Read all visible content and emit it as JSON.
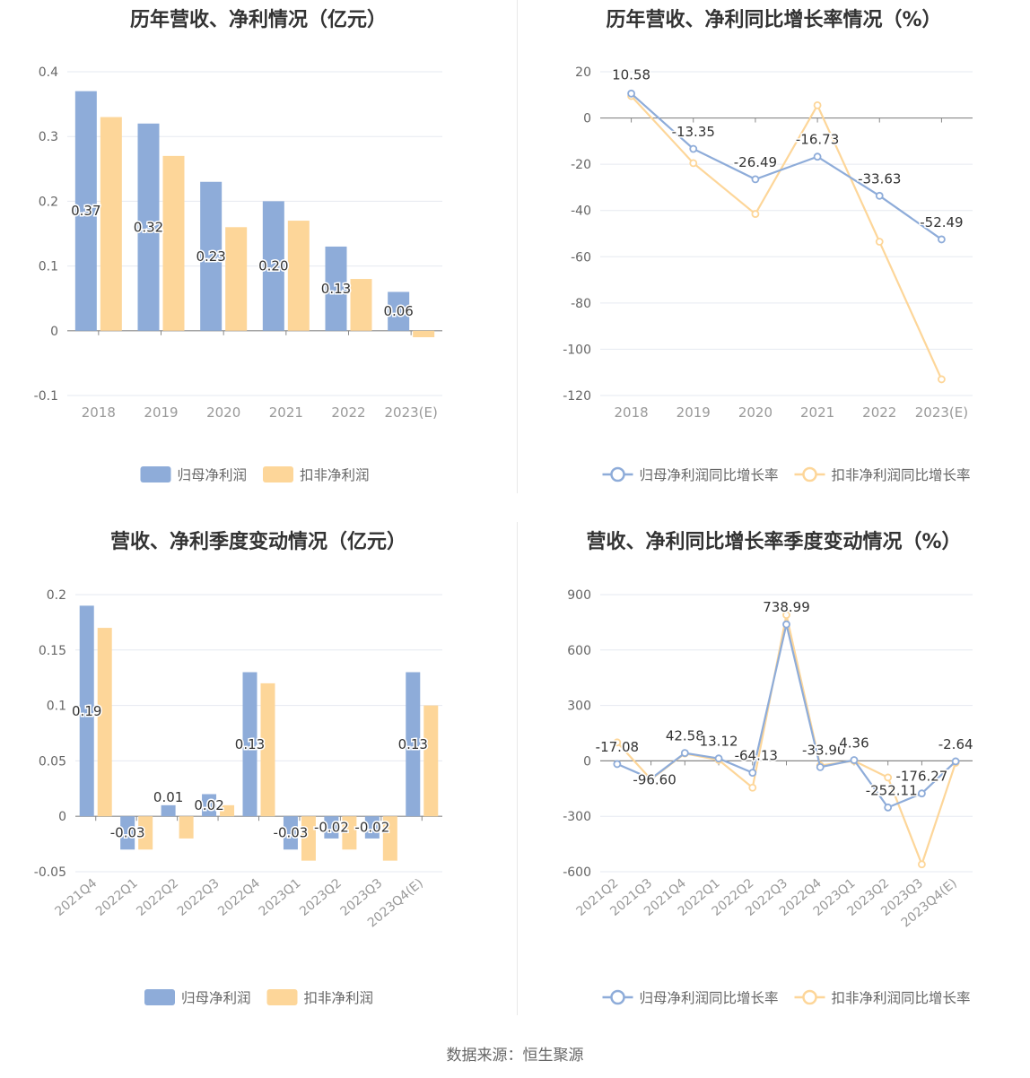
{
  "source": "数据来源：恒生聚源",
  "chart_data": [
    {
      "id": "annual_profit",
      "type": "bar",
      "title": "历年营收、净利情况（亿元）",
      "categories": [
        "2018",
        "2019",
        "2020",
        "2021",
        "2022",
        "2023(E)"
      ],
      "series": [
        {
          "name": "归母净利润",
          "values": [
            0.37,
            0.32,
            0.23,
            0.2,
            0.13,
            0.06
          ],
          "labels": [
            "0.37",
            "0.32",
            "0.23",
            "0.20",
            "0.13",
            "0.06"
          ],
          "color": "#8eacd9"
        },
        {
          "name": "扣非净利润",
          "values": [
            0.33,
            0.27,
            0.16,
            0.17,
            0.08,
            -0.01
          ],
          "color": "#fdd699"
        }
      ],
      "yticks": [
        "0.4",
        "0.3",
        "0.2",
        "0.1",
        "0",
        "-0.1"
      ],
      "ylim": [
        -0.1,
        0.4
      ],
      "legend": "bottom-center",
      "grid": true
    },
    {
      "id": "annual_growth",
      "type": "line",
      "title": "历年营收、净利同比增长率情况（%）",
      "categories": [
        "2018",
        "2019",
        "2020",
        "2021",
        "2022",
        "2023(E)"
      ],
      "series": [
        {
          "name": "归母净利润同比增长率",
          "values": [
            10.58,
            -13.35,
            -26.49,
            -16.73,
            -33.63,
            -52.49
          ],
          "labels": [
            "10.58",
            "-13.35",
            "-26.49",
            "-16.73",
            "-33.63",
            "-52.49"
          ],
          "color": "#8eacd9"
        },
        {
          "name": "扣非净利润同比增长率",
          "values": [
            9.5,
            -19.5,
            -41.5,
            5.5,
            -53.5,
            -113
          ],
          "color": "#fdd699"
        }
      ],
      "yticks": [
        "20",
        "0",
        "-20",
        "-40",
        "-60",
        "-80",
        "-100",
        "-120"
      ],
      "ylim": [
        -120,
        20
      ],
      "legend": "bottom-center",
      "grid": true
    },
    {
      "id": "quarter_profit",
      "type": "bar",
      "title": "营收、净利季度变动情况（亿元）",
      "categories": [
        "2021Q4",
        "2022Q1",
        "2022Q2",
        "2022Q3",
        "2022Q4",
        "2023Q1",
        "2023Q2",
        "2023Q3",
        "2023Q4(E)"
      ],
      "series": [
        {
          "name": "归母净利润",
          "values": [
            0.19,
            -0.03,
            0.01,
            0.02,
            0.13,
            -0.03,
            -0.02,
            -0.02,
            0.13
          ],
          "labels": [
            "0.19",
            "-0.03",
            "0.01",
            "0.02",
            "0.13",
            "-0.03",
            "-0.02",
            "-0.02",
            "0.13"
          ],
          "color": "#8eacd9"
        },
        {
          "name": "扣非净利润",
          "values": [
            0.17,
            -0.03,
            -0.02,
            0.01,
            0.12,
            -0.04,
            -0.03,
            -0.04,
            0.1
          ],
          "color": "#fdd699"
        }
      ],
      "yticks": [
        "0.2",
        "0.15",
        "0.1",
        "0.05",
        "0",
        "-0.05"
      ],
      "ylim": [
        -0.05,
        0.2
      ],
      "legend": "bottom-center",
      "grid": true
    },
    {
      "id": "quarter_growth",
      "type": "line",
      "title": "营收、净利同比增长率季度变动情况（%）",
      "categories": [
        "2021Q2",
        "2021Q3",
        "2021Q4",
        "2022Q1",
        "2022Q2",
        "2022Q3",
        "2022Q4",
        "2023Q1",
        "2023Q2",
        "2023Q3",
        "2023Q4(E)"
      ],
      "series": [
        {
          "name": "归母净利润同比增长率",
          "values": [
            -17.08,
            -96.6,
            42.58,
            13.12,
            -64.13,
            738.99,
            -33.9,
            4.36,
            -252.11,
            -176.27,
            -2.64
          ],
          "labels": [
            "-17.08",
            "-96.60",
            "42.58",
            "13.12",
            "-64.13",
            "738.99",
            "-33.90",
            "4.36",
            "-252.11",
            "-176.27",
            "-2.64"
          ],
          "color": "#8eacd9"
        },
        {
          "name": "扣非净利润同比增长率",
          "values": [
            100,
            -100,
            40,
            5,
            -145,
            790,
            -25,
            0,
            -90,
            -560,
            -10
          ],
          "color": "#fdd699"
        }
      ],
      "yticks": [
        "900",
        "600",
        "300",
        "0",
        "-300",
        "-600"
      ],
      "ylim": [
        -600,
        900
      ],
      "legend": "bottom-center",
      "grid": true
    }
  ]
}
